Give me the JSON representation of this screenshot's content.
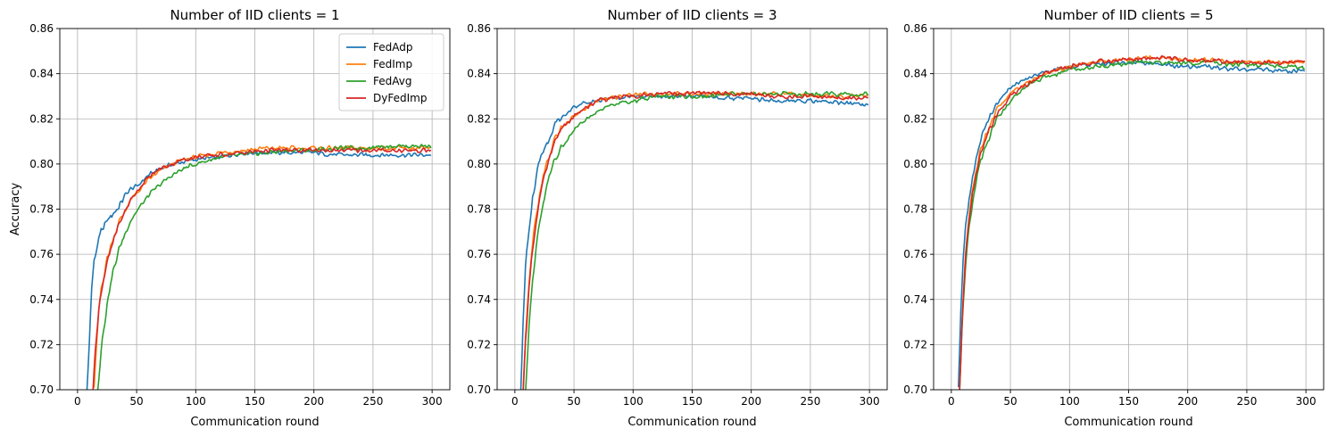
{
  "chart_data": [
    {
      "type": "line",
      "title": "Number of IID clients = 1",
      "xlabel": "Communication round",
      "ylabel": "Accuracy",
      "xlim": [
        -15,
        315
      ],
      "ylim": [
        0.7,
        0.86
      ],
      "xticks": [
        0,
        50,
        100,
        150,
        200,
        250,
        300
      ],
      "yticks": [
        0.7,
        0.72,
        0.74,
        0.76,
        0.78,
        0.8,
        0.82,
        0.84,
        0.86
      ],
      "grid": true,
      "legend": "top-right",
      "series": [
        {
          "name": "FedAdp",
          "color": "#1f77b4",
          "x": [
            8,
            10,
            12,
            14,
            16,
            18,
            20,
            25,
            30,
            35,
            40,
            45,
            50,
            60,
            70,
            80,
            90,
            100,
            120,
            140,
            160,
            180,
            200,
            220,
            240,
            260,
            280,
            299
          ],
          "y": [
            0.7,
            0.722,
            0.745,
            0.757,
            0.762,
            0.766,
            0.77,
            0.775,
            0.778,
            0.781,
            0.786,
            0.789,
            0.79,
            0.795,
            0.798,
            0.8,
            0.801,
            0.802,
            0.803,
            0.805,
            0.805,
            0.805,
            0.805,
            0.804,
            0.804,
            0.804,
            0.804,
            0.804
          ]
        },
        {
          "name": "FedImp",
          "color": "#ff7f0e",
          "x": [
            14,
            16,
            18,
            20,
            25,
            30,
            35,
            40,
            45,
            50,
            60,
            70,
            80,
            90,
            100,
            120,
            140,
            160,
            180,
            200,
            220,
            240,
            260,
            280,
            299
          ],
          "y": [
            0.7,
            0.718,
            0.735,
            0.745,
            0.758,
            0.767,
            0.774,
            0.779,
            0.784,
            0.787,
            0.793,
            0.797,
            0.8,
            0.802,
            0.803,
            0.805,
            0.806,
            0.807,
            0.807,
            0.807,
            0.807,
            0.807,
            0.807,
            0.807,
            0.807
          ]
        },
        {
          "name": "FedAvg",
          "color": "#2ca02c",
          "x": [
            17,
            20,
            25,
            30,
            35,
            40,
            45,
            50,
            60,
            70,
            80,
            90,
            100,
            120,
            140,
            160,
            180,
            200,
            220,
            240,
            260,
            280,
            299
          ],
          "y": [
            0.7,
            0.718,
            0.738,
            0.752,
            0.762,
            0.769,
            0.775,
            0.779,
            0.786,
            0.791,
            0.795,
            0.798,
            0.8,
            0.803,
            0.804,
            0.805,
            0.806,
            0.806,
            0.807,
            0.807,
            0.808,
            0.808,
            0.808
          ]
        },
        {
          "name": "DyFedImp",
          "color": "#d62728",
          "x": [
            13,
            15,
            18,
            20,
            25,
            30,
            35,
            40,
            45,
            50,
            60,
            70,
            80,
            90,
            100,
            120,
            140,
            160,
            180,
            200,
            220,
            240,
            260,
            280,
            299
          ],
          "y": [
            0.7,
            0.718,
            0.735,
            0.742,
            0.756,
            0.766,
            0.773,
            0.779,
            0.784,
            0.788,
            0.794,
            0.798,
            0.8,
            0.802,
            0.803,
            0.804,
            0.805,
            0.806,
            0.806,
            0.806,
            0.806,
            0.806,
            0.806,
            0.806,
            0.806
          ]
        }
      ]
    },
    {
      "type": "line",
      "title": "Number of IID clients = 3",
      "xlabel": "Communication round",
      "ylabel": "",
      "xlim": [
        -15,
        315
      ],
      "ylim": [
        0.7,
        0.86
      ],
      "xticks": [
        0,
        50,
        100,
        150,
        200,
        250,
        300
      ],
      "yticks": [
        0.7,
        0.72,
        0.74,
        0.76,
        0.78,
        0.8,
        0.82,
        0.84,
        0.86
      ],
      "grid": true,
      "series": [
        {
          "name": "FedAdp",
          "color": "#1f77b4",
          "x": [
            5,
            7,
            9,
            11,
            13,
            15,
            18,
            20,
            25,
            30,
            35,
            40,
            50,
            60,
            70,
            80,
            100,
            120,
            140,
            160,
            180,
            200,
            220,
            240,
            260,
            280,
            299
          ],
          "y": [
            0.7,
            0.73,
            0.755,
            0.767,
            0.775,
            0.785,
            0.793,
            0.8,
            0.808,
            0.813,
            0.818,
            0.821,
            0.825,
            0.827,
            0.828,
            0.829,
            0.83,
            0.83,
            0.83,
            0.83,
            0.829,
            0.829,
            0.828,
            0.828,
            0.828,
            0.827,
            0.826
          ]
        },
        {
          "name": "FedImp",
          "color": "#ff7f0e",
          "x": [
            7,
            9,
            12,
            15,
            18,
            20,
            25,
            30,
            35,
            40,
            50,
            60,
            70,
            80,
            100,
            120,
            140,
            160,
            180,
            200,
            220,
            240,
            260,
            280,
            299
          ],
          "y": [
            0.7,
            0.725,
            0.748,
            0.765,
            0.777,
            0.784,
            0.797,
            0.806,
            0.812,
            0.816,
            0.821,
            0.825,
            0.828,
            0.829,
            0.831,
            0.831,
            0.831,
            0.831,
            0.831,
            0.831,
            0.831,
            0.831,
            0.83,
            0.83,
            0.83
          ]
        },
        {
          "name": "FedAvg",
          "color": "#2ca02c",
          "x": [
            9,
            12,
            15,
            18,
            20,
            25,
            30,
            35,
            40,
            50,
            60,
            70,
            80,
            90,
            100,
            120,
            140,
            160,
            180,
            200,
            220,
            240,
            260,
            280,
            299
          ],
          "y": [
            0.7,
            0.728,
            0.748,
            0.763,
            0.772,
            0.786,
            0.796,
            0.803,
            0.808,
            0.815,
            0.82,
            0.823,
            0.826,
            0.827,
            0.828,
            0.83,
            0.83,
            0.83,
            0.831,
            0.831,
            0.831,
            0.831,
            0.831,
            0.831,
            0.831
          ]
        },
        {
          "name": "DyFedImp",
          "color": "#d62728",
          "x": [
            7,
            9,
            12,
            15,
            18,
            20,
            25,
            30,
            35,
            40,
            50,
            60,
            70,
            80,
            100,
            120,
            140,
            160,
            180,
            200,
            220,
            240,
            260,
            280,
            299
          ],
          "y": [
            0.7,
            0.722,
            0.746,
            0.762,
            0.775,
            0.782,
            0.795,
            0.804,
            0.811,
            0.816,
            0.821,
            0.825,
            0.828,
            0.829,
            0.83,
            0.831,
            0.831,
            0.832,
            0.831,
            0.831,
            0.83,
            0.83,
            0.83,
            0.829,
            0.829
          ]
        }
      ]
    },
    {
      "type": "line",
      "title": "Number of IID clients = 5",
      "xlabel": "Communication round",
      "ylabel": "",
      "xlim": [
        -15,
        315
      ],
      "ylim": [
        0.7,
        0.86
      ],
      "xticks": [
        0,
        50,
        100,
        150,
        200,
        250,
        300
      ],
      "yticks": [
        0.7,
        0.72,
        0.74,
        0.76,
        0.78,
        0.8,
        0.82,
        0.84,
        0.86
      ],
      "grid": true,
      "series": [
        {
          "name": "FedAdp",
          "color": "#1f77b4",
          "x": [
            6,
            8,
            10,
            12,
            15,
            18,
            20,
            25,
            30,
            35,
            40,
            50,
            60,
            70,
            80,
            90,
            100,
            120,
            140,
            160,
            180,
            200,
            220,
            240,
            260,
            280,
            299
          ],
          "y": [
            0.7,
            0.735,
            0.758,
            0.772,
            0.785,
            0.795,
            0.8,
            0.811,
            0.818,
            0.823,
            0.828,
            0.834,
            0.837,
            0.839,
            0.841,
            0.842,
            0.843,
            0.844,
            0.845,
            0.845,
            0.844,
            0.843,
            0.843,
            0.842,
            0.842,
            0.841,
            0.841
          ]
        },
        {
          "name": "FedImp",
          "color": "#ff7f0e",
          "x": [
            7,
            9,
            12,
            15,
            18,
            20,
            25,
            30,
            35,
            40,
            50,
            60,
            70,
            80,
            90,
            100,
            120,
            140,
            160,
            180,
            200,
            220,
            240,
            260,
            280,
            299
          ],
          "y": [
            0.7,
            0.73,
            0.76,
            0.777,
            0.789,
            0.795,
            0.806,
            0.814,
            0.82,
            0.825,
            0.831,
            0.835,
            0.838,
            0.84,
            0.842,
            0.843,
            0.845,
            0.846,
            0.847,
            0.847,
            0.846,
            0.846,
            0.845,
            0.845,
            0.845,
            0.845
          ]
        },
        {
          "name": "FedAvg",
          "color": "#2ca02c",
          "x": [
            7,
            9,
            12,
            15,
            18,
            20,
            25,
            30,
            35,
            40,
            50,
            60,
            70,
            80,
            90,
            100,
            120,
            140,
            160,
            180,
            200,
            220,
            240,
            260,
            280,
            299
          ],
          "y": [
            0.7,
            0.727,
            0.755,
            0.772,
            0.784,
            0.79,
            0.802,
            0.81,
            0.816,
            0.821,
            0.828,
            0.833,
            0.836,
            0.839,
            0.84,
            0.842,
            0.843,
            0.844,
            0.845,
            0.845,
            0.845,
            0.845,
            0.844,
            0.844,
            0.843,
            0.843
          ]
        },
        {
          "name": "DyFedImp",
          "color": "#d62728",
          "x": [
            7,
            9,
            12,
            15,
            18,
            20,
            25,
            30,
            35,
            40,
            50,
            60,
            70,
            80,
            90,
            100,
            120,
            140,
            160,
            180,
            200,
            220,
            240,
            260,
            280,
            299
          ],
          "y": [
            0.7,
            0.73,
            0.758,
            0.775,
            0.787,
            0.793,
            0.804,
            0.812,
            0.818,
            0.823,
            0.83,
            0.834,
            0.837,
            0.84,
            0.842,
            0.843,
            0.845,
            0.846,
            0.847,
            0.847,
            0.846,
            0.846,
            0.845,
            0.845,
            0.845,
            0.845
          ]
        }
      ]
    }
  ]
}
